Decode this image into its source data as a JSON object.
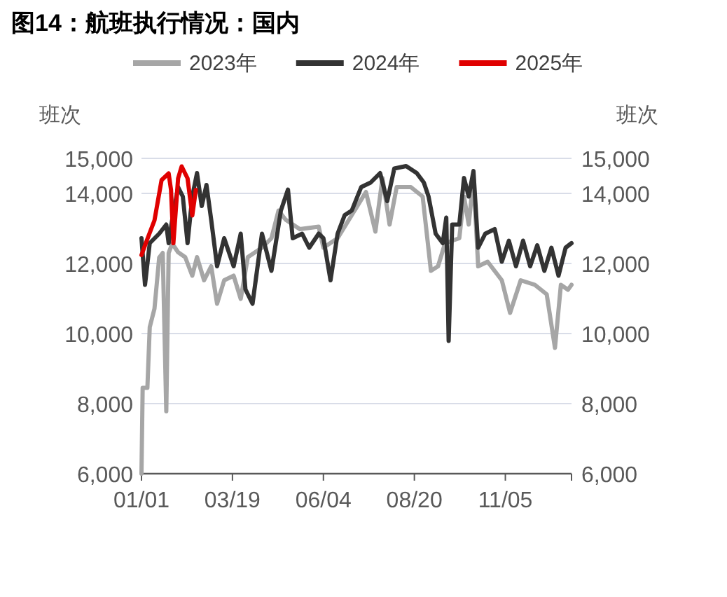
{
  "chart_data": {
    "type": "line",
    "title": "图14：航班执行情况：国内",
    "ylabel": "班次",
    "y2label": "班次",
    "xlim": [
      "--01-01",
      "--12-31"
    ],
    "xticks": [
      {
        "value": "--01-01",
        "label": "01/01"
      },
      {
        "value": "--03-19",
        "label": "03/19"
      },
      {
        "value": "--06-04",
        "label": "06/04"
      },
      {
        "value": "--08-20",
        "label": "08/20"
      },
      {
        "value": "--11-05",
        "label": "11/05"
      }
    ],
    "ylim": [
      6000,
      15000
    ],
    "yticks": [
      {
        "value": 6000,
        "label": "6,000"
      },
      {
        "value": 8000,
        "label": "8,000"
      },
      {
        "value": 10000,
        "label": "10,000"
      },
      {
        "value": 12000,
        "label": "12,000"
      },
      {
        "value": 14000,
        "label": "14,000"
      },
      {
        "value": 15000,
        "label": "15,000"
      }
    ],
    "y2lim": [
      6000,
      15000
    ],
    "y2ticks": [
      {
        "value": 6000,
        "label": "6,000"
      },
      {
        "value": 8000,
        "label": "8,000"
      },
      {
        "value": 10000,
        "label": "10,000"
      },
      {
        "value": 12000,
        "label": "12,000"
      },
      {
        "value": 14000,
        "label": "14,000"
      },
      {
        "value": 15000,
        "label": "15,000"
      }
    ],
    "grid": "y",
    "legend": "top",
    "series": [
      {
        "name": "2023年",
        "color": "#a6a6a6",
        "x": [
          "--01-01",
          "--01-02",
          "--01-06",
          "--01-08",
          "--01-12",
          "--01-16",
          "--01-19",
          "--01-22",
          "--01-24",
          "--01-27",
          "--02-01",
          "--02-07",
          "--02-13",
          "--02-17",
          "--02-23",
          "--03-01",
          "--03-06",
          "--03-12",
          "--03-20",
          "--03-26",
          "--04-01",
          "--04-13",
          "--04-21",
          "--04-27",
          "--05-03",
          "--05-15",
          "--05-31",
          "--06-04",
          "--06-16",
          "--06-28",
          "--07-10",
          "--07-18",
          "--07-24",
          "--07-30",
          "--08-05",
          "--08-17",
          "--08-27",
          "--09-03",
          "--09-09",
          "--09-15",
          "--09-27",
          "--10-01",
          "--10-05",
          "--10-09",
          "--10-13",
          "--10-21",
          "--11-02",
          "--11-09",
          "--11-18",
          "--11-30",
          "--12-10",
          "--12-17",
          "--12-22",
          "--12-28",
          "--12-31"
        ],
        "values": [
          6000,
          8450,
          8450,
          10180,
          10710,
          12170,
          12300,
          7780,
          12300,
          12570,
          12320,
          12180,
          11650,
          12180,
          11520,
          11920,
          10850,
          11520,
          11650,
          10990,
          12180,
          12450,
          12720,
          13510,
          13250,
          12980,
          13050,
          12450,
          12720,
          13380,
          14040,
          12910,
          14440,
          13110,
          14180,
          14180,
          13910,
          11790,
          11920,
          12580,
          12720,
          13910,
          13110,
          14440,
          11920,
          12050,
          11520,
          10590,
          11520,
          11390,
          11120,
          9590,
          11390,
          11250,
          11390
        ]
      },
      {
        "name": "2024年",
        "color": "#333333",
        "x": [
          "--01-01",
          "--01-04",
          "--01-08",
          "--01-16",
          "--01-22",
          "--01-24",
          "--01-27",
          "--02-01",
          "--02-05",
          "--02-09",
          "--02-13",
          "--02-17",
          "--02-21",
          "--02-25",
          "--03-01",
          "--03-06",
          "--03-12",
          "--03-20",
          "--03-26",
          "--03-30",
          "--04-05",
          "--04-13",
          "--04-21",
          "--04-29",
          "--05-05",
          "--05-09",
          "--05-17",
          "--05-23",
          "--05-31",
          "--06-04",
          "--06-10",
          "--06-16",
          "--06-22",
          "--06-28",
          "--07-06",
          "--07-14",
          "--07-22",
          "--07-28",
          "--08-03",
          "--08-13",
          "--08-22",
          "--08-28",
          "--09-01",
          "--09-07",
          "--09-13",
          "--09-16",
          "--09-18",
          "--09-21",
          "--09-27",
          "--10-01",
          "--10-05",
          "--10-09",
          "--10-13",
          "--10-19",
          "--10-27",
          "--11-02",
          "--11-08",
          "--11-14",
          "--11-20",
          "--11-26",
          "--12-02",
          "--12-08",
          "--12-14",
          "--12-20",
          "--12-26",
          "--12-31"
        ],
        "values": [
          12720,
          11390,
          12580,
          12850,
          13110,
          12580,
          13250,
          14180,
          13910,
          12580,
          13910,
          14580,
          13640,
          14240,
          13250,
          11920,
          12720,
          11920,
          12850,
          11260,
          10850,
          12850,
          11790,
          13510,
          14110,
          12720,
          12850,
          12450,
          12850,
          12720,
          11520,
          12850,
          13380,
          13510,
          14180,
          14310,
          14580,
          13780,
          14710,
          14780,
          14580,
          14310,
          13910,
          12850,
          12580,
          13310,
          9790,
          13110,
          13110,
          14440,
          13910,
          14640,
          12450,
          12850,
          12980,
          12050,
          12650,
          11920,
          12650,
          11920,
          12520,
          11790,
          12450,
          11650,
          12450,
          12580
        ]
      },
      {
        "name": "2025年",
        "color": "#e00000",
        "x": [
          "--01-01",
          "--01-06",
          "--01-12",
          "--01-18",
          "--01-24",
          "--01-26",
          "--01-28",
          "--02-01",
          "--02-04",
          "--02-09",
          "--02-13",
          "--02-16"
        ],
        "values": [
          12240,
          12700,
          13230,
          14380,
          14570,
          14100,
          12580,
          14430,
          14770,
          14430,
          13370,
          14100
        ]
      }
    ]
  }
}
